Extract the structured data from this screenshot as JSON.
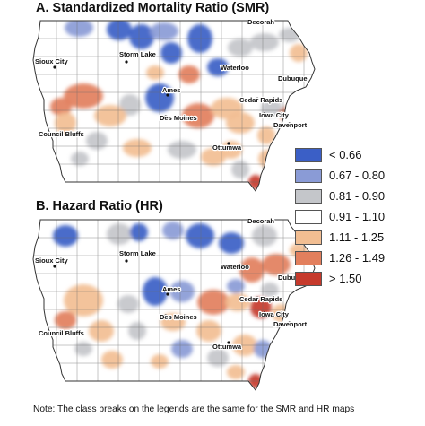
{
  "panels": [
    {
      "title": "A. Standardized Mortality Ratio (SMR)",
      "cities": [
        "Decorah",
        "Sioux City",
        "Storm Lake",
        "Waterloo",
        "Dubuque",
        "Ames",
        "Cedar Rapids",
        "Iowa City",
        "Des Moines",
        "Davenport",
        "Council Bluffs",
        "Ottumwa"
      ]
    },
    {
      "title": "B. Hazard Ratio (HR)",
      "cities": [
        "Decorah",
        "Sioux City",
        "Storm Lake",
        "Waterloo",
        "Dubuque",
        "Ames",
        "Cedar Rapids",
        "Iowa City",
        "Des Moines",
        "Davenport",
        "Council Bluffs",
        "Ottumwa"
      ]
    }
  ],
  "legend": [
    {
      "label": "< 0.66",
      "color": "#3b5fc6"
    },
    {
      "label": "0.67 - 0.80",
      "color": "#8a9bd6"
    },
    {
      "label": "0.81 - 0.90",
      "color": "#c4c6ca"
    },
    {
      "label": "0.91 - 1.10",
      "color": "#ffffff"
    },
    {
      "label": "1.11 - 1.25",
      "color": "#f2be92"
    },
    {
      "label": "1.26 - 1.49",
      "color": "#e27f5d"
    },
    {
      "label": "> 1.50",
      "color": "#c63a2c"
    }
  ],
  "note": "Note:  The class breaks on the legends are the same for the SMR and HR maps"
}
